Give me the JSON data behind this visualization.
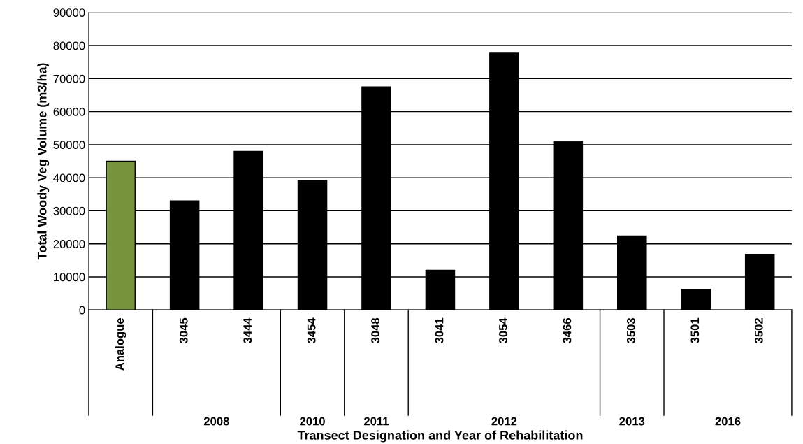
{
  "chart_data": {
    "type": "bar",
    "xlabel": "Transect Designation and Year of Rehabilitation",
    "ylabel": "Total Woody Veg Volume (m3/ha)",
    "categories": [
      "Analogue",
      "3045",
      "3444",
      "3454",
      "3048",
      "3041",
      "3054",
      "3466",
      "3503",
      "3501",
      "3502"
    ],
    "values": [
      45000,
      33000,
      48000,
      39200,
      67500,
      12000,
      77700,
      51000,
      22400,
      6200,
      16800
    ],
    "colors": [
      "#77933c",
      "#000000",
      "#000000",
      "#000000",
      "#000000",
      "#000000",
      "#000000",
      "#000000",
      "#000000",
      "#000000",
      "#000000"
    ],
    "ylim": [
      0,
      90000
    ],
    "yticks": [
      0,
      10000,
      20000,
      30000,
      40000,
      50000,
      60000,
      70000,
      80000,
      90000
    ],
    "grid": "y",
    "annotations": [
      "2008",
      "2010",
      "2011",
      "2012",
      "2013",
      "2016"
    ]
  }
}
